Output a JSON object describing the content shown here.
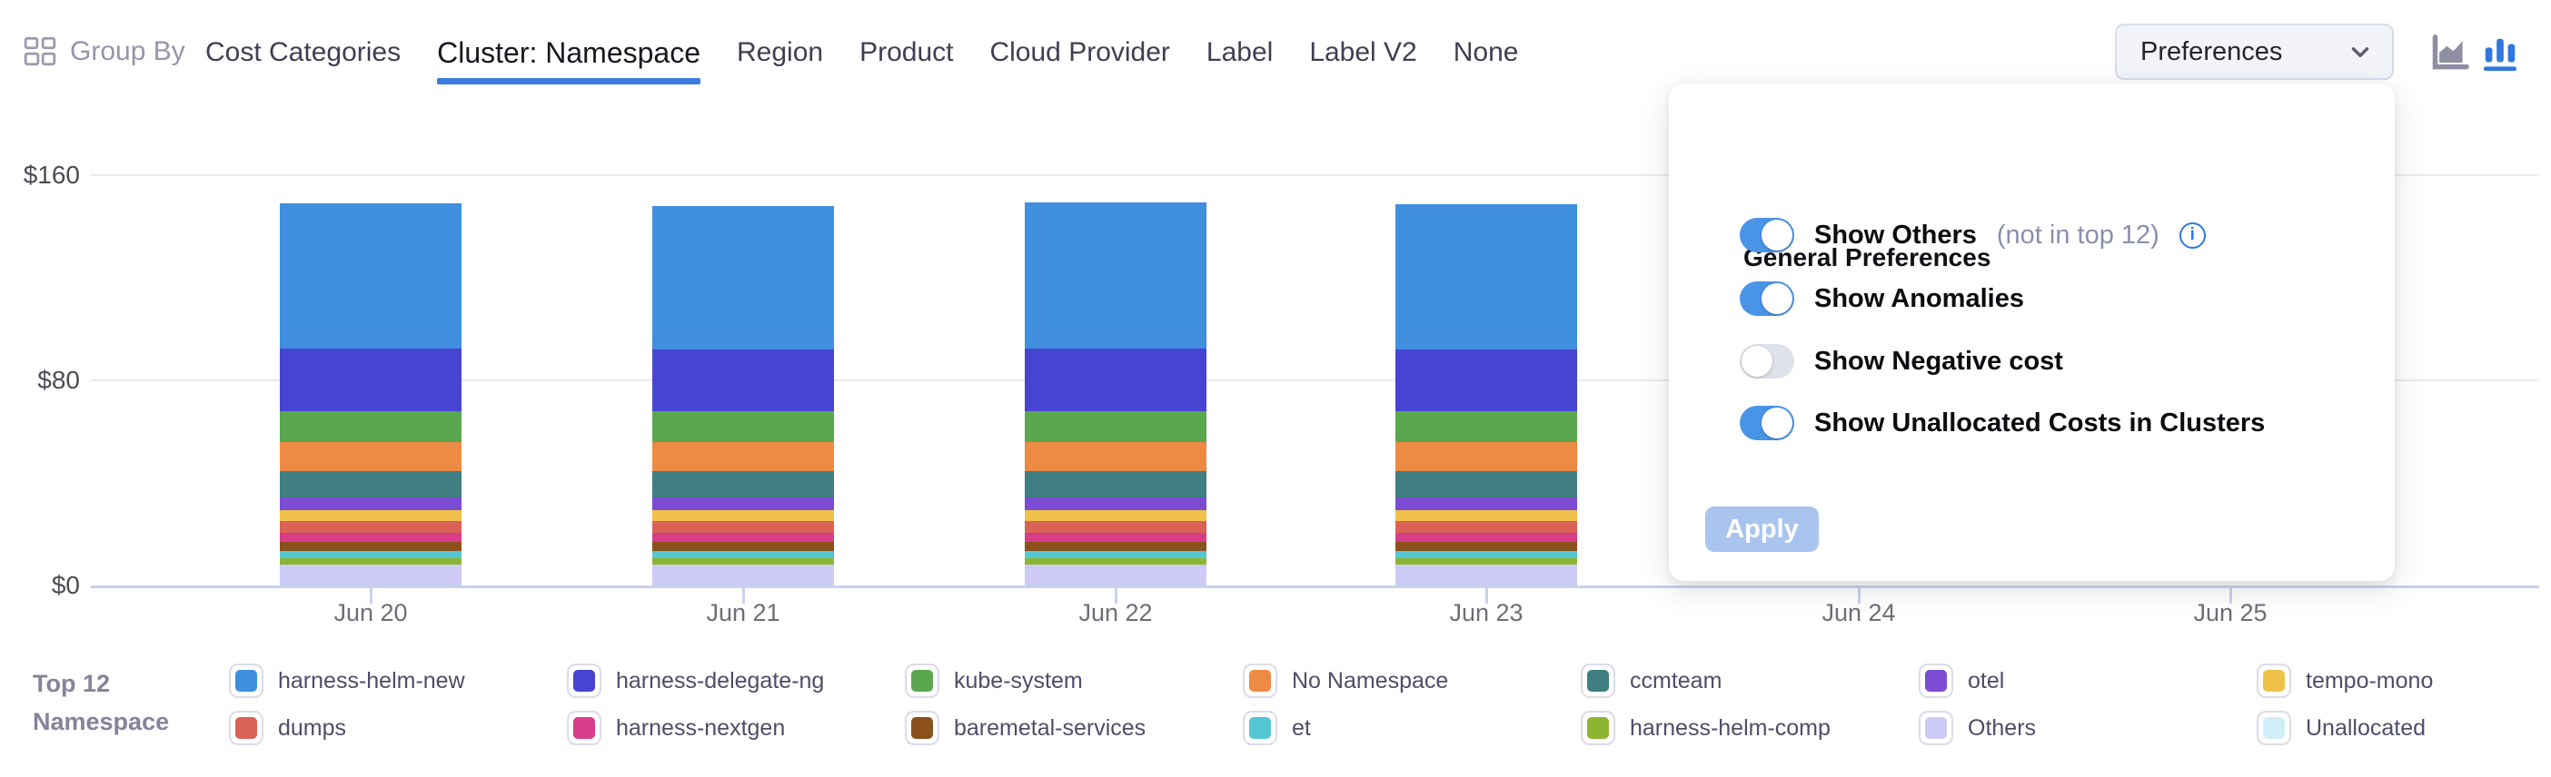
{
  "header": {
    "group_by_label": "Group By",
    "tabs": [
      "Cost Categories",
      "Cluster: Namespace",
      "Region",
      "Product",
      "Cloud Provider",
      "Label",
      "Label V2",
      "None"
    ],
    "active_tab": "Cluster: Namespace",
    "preferences_button_label": "Preferences",
    "chart_type_toggle": {
      "options": [
        "area-chart",
        "bar-chart"
      ],
      "active": "bar-chart"
    }
  },
  "preferences_panel": {
    "title": "General Preferences",
    "toggles": [
      {
        "label": "Show Others",
        "suffix": "(not in top 12)",
        "info_icon": true,
        "on": true
      },
      {
        "label": "Show Anomalies",
        "suffix": "",
        "info_icon": false,
        "on": true
      },
      {
        "label": "Show Negative cost",
        "suffix": "",
        "info_icon": false,
        "on": false
      },
      {
        "label": "Show Unallocated Costs in Clusters",
        "suffix": "",
        "info_icon": false,
        "on": true
      }
    ],
    "apply_button_label": "Apply",
    "apply_enabled": false
  },
  "chart_data": {
    "type": "bar",
    "stacked": true,
    "unit": "USD",
    "x": [
      "Jun 20",
      "Jun 21",
      "Jun 22",
      "Jun 23",
      "Jun 24",
      "Jun 25"
    ],
    "y_axis": {
      "min": 0,
      "max": 160,
      "ticks": [
        {
          "label": "$160",
          "value": 160
        },
        {
          "label": "$80",
          "value": 80
        },
        {
          "label": "$0",
          "value": 0
        }
      ]
    },
    "grid": "horizontal",
    "legend_position": "bottom",
    "series_bottom_to_top": [
      {
        "name": "Others",
        "color": "#cdcaf5",
        "values": [
          8,
          8,
          8,
          8,
          0,
          0
        ]
      },
      {
        "name": "harness-helm-comp",
        "color": "#8cb531",
        "values": [
          2.5,
          2.5,
          2.5,
          2.5,
          0,
          0
        ]
      },
      {
        "name": "et",
        "color": "#55c6d3",
        "values": [
          3,
          3,
          3,
          3,
          0,
          0
        ]
      },
      {
        "name": "baremetal-services",
        "color": "#8a511c",
        "values": [
          3.5,
          3.5,
          3.5,
          3.5,
          0,
          0
        ]
      },
      {
        "name": "harness-nextgen",
        "color": "#d93d89",
        "values": [
          3.5,
          3.5,
          3.5,
          3.5,
          0,
          0
        ]
      },
      {
        "name": "dumps",
        "color": "#da6257",
        "values": [
          4.5,
          4.5,
          4.5,
          4.5,
          0,
          0
        ]
      },
      {
        "name": "tempo-mono",
        "color": "#f0c24b",
        "values": [
          4.5,
          4.5,
          4.5,
          4.5,
          0,
          0
        ]
      },
      {
        "name": "otel",
        "color": "#7b4bd3",
        "values": [
          5,
          5,
          5,
          5,
          0,
          0
        ]
      },
      {
        "name": "ccmteam",
        "color": "#3f7f81",
        "values": [
          10,
          10,
          10,
          10,
          0,
          0
        ]
      },
      {
        "name": "No Namespace",
        "color": "#ed8a43",
        "values": [
          11.5,
          11.5,
          11.5,
          11.5,
          0,
          0
        ]
      },
      {
        "name": "kube-system",
        "color": "#5aa74f",
        "values": [
          12,
          12,
          12,
          12,
          0,
          0
        ]
      },
      {
        "name": "harness-delegate-ng",
        "color": "#4744d2",
        "values": [
          24.5,
          24,
          24.5,
          24,
          0,
          0
        ]
      },
      {
        "name": "harness-helm-new",
        "color": "#3f8fde",
        "values": [
          56.5,
          56,
          57,
          56.5,
          0,
          0
        ]
      }
    ]
  },
  "legend": {
    "title_line1": "Top 12",
    "title_line2": "Namespace",
    "items": [
      {
        "name": "harness-helm-new",
        "color": "#3f8fde"
      },
      {
        "name": "dumps",
        "color": "#da6257"
      },
      {
        "name": "harness-delegate-ng",
        "color": "#4744d2"
      },
      {
        "name": "harness-nextgen",
        "color": "#d93d89"
      },
      {
        "name": "kube-system",
        "color": "#5aa74f"
      },
      {
        "name": "baremetal-services",
        "color": "#8a511c"
      },
      {
        "name": "No Namespace",
        "color": "#ed8a43"
      },
      {
        "name": "et",
        "color": "#55c6d3"
      },
      {
        "name": "ccmteam",
        "color": "#3f7f81"
      },
      {
        "name": "harness-helm-comp",
        "color": "#8cb531"
      },
      {
        "name": "otel",
        "color": "#7b4bd3"
      },
      {
        "name": "Others",
        "color": "#cdcaf5"
      },
      {
        "name": "tempo-mono",
        "color": "#f0c24b"
      },
      {
        "name": "Unallocated",
        "color": "#cfeef8"
      }
    ]
  },
  "colors": {
    "accent_blue": "#2f78dd",
    "active_tab_underline": "#3a7bdb",
    "toggle_on": "#4a94e8",
    "toggle_off": "#dfe2ea",
    "apply_disabled_bg": "#a9c4ee",
    "grid_line": "#e9e9f0",
    "axis_line": "#c9d2ec"
  }
}
